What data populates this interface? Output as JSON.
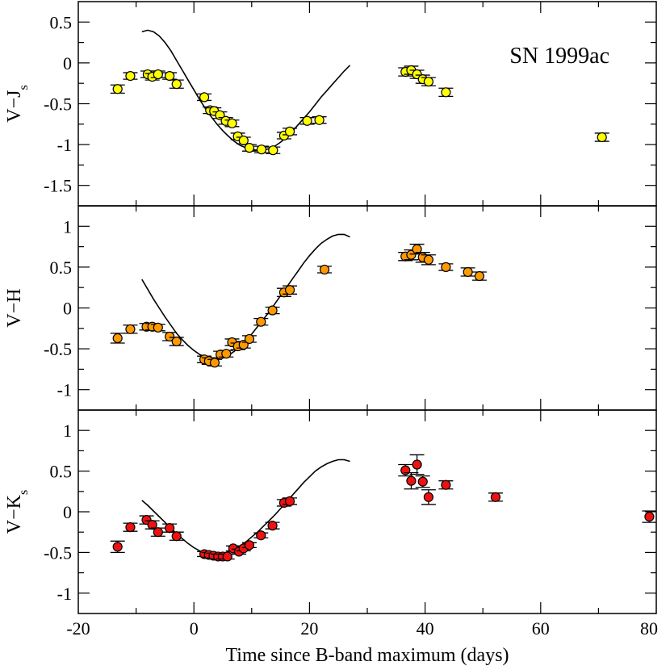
{
  "chart_data": {
    "type": "scatter",
    "title": "SN 1999ac",
    "xlabel": "Time since B-band maximum (days)",
    "xlim": [
      -20,
      80
    ],
    "xticks": [
      -20,
      0,
      20,
      40,
      60,
      80
    ],
    "panels": [
      {
        "id": "vj",
        "ylabel_main": "V−J",
        "ylabel_sub": "s",
        "ylim": [
          -1.75,
          0.75
        ],
        "yticks": [
          0.5,
          0,
          -0.5,
          -1,
          -1.5
        ],
        "ytick_labels": [
          "0.5",
          "0",
          "-0.5",
          "-1",
          "-1.5"
        ],
        "marker_color": "#ffff00",
        "points": [
          {
            "x": -13.2,
            "y": -0.32,
            "err": 0.05
          },
          {
            "x": -11.0,
            "y": -0.16,
            "err": 0.04
          },
          {
            "x": -8.0,
            "y": -0.14,
            "err": 0.04
          },
          {
            "x": -7.2,
            "y": -0.17,
            "err": 0.04
          },
          {
            "x": -6.2,
            "y": -0.14,
            "err": 0.04
          },
          {
            "x": -4.2,
            "y": -0.16,
            "err": 0.04
          },
          {
            "x": -3.0,
            "y": -0.26,
            "err": 0.05
          },
          {
            "x": 1.8,
            "y": -0.42,
            "err": 0.04
          },
          {
            "x": 2.8,
            "y": -0.58,
            "err": 0.04
          },
          {
            "x": 3.5,
            "y": -0.59,
            "err": 0.04
          },
          {
            "x": 4.5,
            "y": -0.64,
            "err": 0.04
          },
          {
            "x": 5.5,
            "y": -0.71,
            "err": 0.04
          },
          {
            "x": 6.6,
            "y": -0.74,
            "err": 0.04
          },
          {
            "x": 7.6,
            "y": -0.9,
            "err": 0.04
          },
          {
            "x": 8.6,
            "y": -0.95,
            "err": 0.04
          },
          {
            "x": 9.6,
            "y": -1.04,
            "err": 0.04
          },
          {
            "x": 11.7,
            "y": -1.06,
            "err": 0.04
          },
          {
            "x": 13.7,
            "y": -1.07,
            "err": 0.04
          },
          {
            "x": 15.6,
            "y": -0.89,
            "err": 0.04
          },
          {
            "x": 16.6,
            "y": -0.84,
            "err": 0.04
          },
          {
            "x": 19.6,
            "y": -0.71,
            "err": 0.04
          },
          {
            "x": 21.7,
            "y": -0.7,
            "err": 0.04
          },
          {
            "x": 36.6,
            "y": -0.11,
            "err": 0.05
          },
          {
            "x": 37.6,
            "y": -0.09,
            "err": 0.05
          },
          {
            "x": 38.6,
            "y": -0.14,
            "err": 0.05
          },
          {
            "x": 39.6,
            "y": -0.2,
            "err": 0.05
          },
          {
            "x": 40.6,
            "y": -0.23,
            "err": 0.05
          },
          {
            "x": 43.6,
            "y": -0.36,
            "err": 0.05
          },
          {
            "x": 70.6,
            "y": -0.91,
            "err": 0.05
          }
        ],
        "curve": {
          "x": [
            -9,
            -8,
            -7,
            -6,
            -5,
            -4,
            -3,
            -2,
            -1,
            0,
            1,
            2,
            3,
            4,
            5,
            6,
            7,
            8,
            9,
            10,
            11,
            12,
            13,
            14,
            15,
            16,
            17,
            18,
            19,
            20,
            21,
            22,
            23,
            24,
            25,
            26,
            27
          ],
          "y": [
            0.38,
            0.4,
            0.38,
            0.33,
            0.25,
            0.15,
            0.03,
            -0.09,
            -0.21,
            -0.33,
            -0.45,
            -0.56,
            -0.66,
            -0.75,
            -0.83,
            -0.9,
            -0.96,
            -1.01,
            -1.04,
            -1.06,
            -1.07,
            -1.07,
            -1.05,
            -1.02,
            -0.97,
            -0.91,
            -0.84,
            -0.76,
            -0.68,
            -0.6,
            -0.51,
            -0.42,
            -0.34,
            -0.26,
            -0.18,
            -0.1,
            -0.03
          ]
        }
      },
      {
        "id": "vh",
        "ylabel_main": "V−H",
        "ylabel_sub": "",
        "ylim": [
          -1.25,
          1.25
        ],
        "yticks": [
          1,
          0.5,
          0,
          -0.5,
          -1
        ],
        "ytick_labels": [
          "1",
          "0.5",
          "0",
          "-0.5",
          "-1"
        ],
        "marker_color": "#ff9900",
        "points": [
          {
            "x": -13.2,
            "y": -0.37,
            "err": 0.06
          },
          {
            "x": -11.0,
            "y": -0.26,
            "err": 0.05
          },
          {
            "x": -8.2,
            "y": -0.23,
            "err": 0.04
          },
          {
            "x": -7.2,
            "y": -0.23,
            "err": 0.04
          },
          {
            "x": -6.2,
            "y": -0.24,
            "err": 0.04
          },
          {
            "x": -4.2,
            "y": -0.35,
            "err": 0.05
          },
          {
            "x": -3.0,
            "y": -0.41,
            "err": 0.05
          },
          {
            "x": 1.8,
            "y": -0.63,
            "err": 0.04
          },
          {
            "x": 2.6,
            "y": -0.65,
            "err": 0.04
          },
          {
            "x": 3.6,
            "y": -0.67,
            "err": 0.04
          },
          {
            "x": 4.6,
            "y": -0.57,
            "err": 0.04
          },
          {
            "x": 5.6,
            "y": -0.56,
            "err": 0.04
          },
          {
            "x": 6.6,
            "y": -0.42,
            "err": 0.04
          },
          {
            "x": 7.6,
            "y": -0.47,
            "err": 0.04
          },
          {
            "x": 8.6,
            "y": -0.45,
            "err": 0.04
          },
          {
            "x": 9.6,
            "y": -0.38,
            "err": 0.04
          },
          {
            "x": 11.6,
            "y": -0.17,
            "err": 0.04
          },
          {
            "x": 13.6,
            "y": -0.03,
            "err": 0.04
          },
          {
            "x": 15.6,
            "y": 0.19,
            "err": 0.05
          },
          {
            "x": 16.6,
            "y": 0.22,
            "err": 0.05
          },
          {
            "x": 22.6,
            "y": 0.47,
            "err": 0.04
          },
          {
            "x": 36.6,
            "y": 0.63,
            "err": 0.05
          },
          {
            "x": 37.6,
            "y": 0.65,
            "err": 0.06
          },
          {
            "x": 38.6,
            "y": 0.72,
            "err": 0.06
          },
          {
            "x": 39.6,
            "y": 0.62,
            "err": 0.06
          },
          {
            "x": 40.6,
            "y": 0.59,
            "err": 0.06
          },
          {
            "x": 43.6,
            "y": 0.5,
            "err": 0.04
          },
          {
            "x": 47.4,
            "y": 0.44,
            "err": 0.05
          },
          {
            "x": 49.4,
            "y": 0.39,
            "err": 0.05
          }
        ],
        "curve": {
          "x": [
            -9,
            -8,
            -7,
            -6,
            -5,
            -4,
            -3,
            -2,
            -1,
            0,
            1,
            2,
            3,
            4,
            5,
            6,
            7,
            8,
            9,
            10,
            11,
            12,
            13,
            14,
            15,
            16,
            17,
            18,
            19,
            20,
            21,
            22,
            23,
            24,
            25,
            26,
            27
          ],
          "y": [
            0.35,
            0.23,
            0.11,
            0.0,
            -0.11,
            -0.21,
            -0.31,
            -0.39,
            -0.46,
            -0.52,
            -0.57,
            -0.6,
            -0.62,
            -0.62,
            -0.61,
            -0.58,
            -0.53,
            -0.47,
            -0.4,
            -0.32,
            -0.23,
            -0.14,
            -0.05,
            0.05,
            0.15,
            0.25,
            0.35,
            0.45,
            0.55,
            0.64,
            0.72,
            0.79,
            0.84,
            0.88,
            0.9,
            0.9,
            0.87
          ]
        }
      },
      {
        "id": "vk",
        "ylabel_main": "V−K",
        "ylabel_sub": "s",
        "ylim": [
          -1.25,
          1.25
        ],
        "yticks": [
          1,
          0.5,
          0,
          -0.5,
          -1
        ],
        "ytick_labels": [
          "1",
          "0.5",
          "0",
          "-0.5",
          "-1"
        ],
        "marker_color": "#ee1111",
        "points": [
          {
            "x": -13.2,
            "y": -0.43,
            "err": 0.07
          },
          {
            "x": -11.0,
            "y": -0.19,
            "err": 0.05
          },
          {
            "x": -8.2,
            "y": -0.1,
            "err": 0.05
          },
          {
            "x": -7.2,
            "y": -0.16,
            "err": 0.05
          },
          {
            "x": -6.2,
            "y": -0.25,
            "err": 0.05
          },
          {
            "x": -4.2,
            "y": -0.2,
            "err": 0.05
          },
          {
            "x": -3.0,
            "y": -0.3,
            "err": 0.05
          },
          {
            "x": 1.8,
            "y": -0.52,
            "err": 0.03
          },
          {
            "x": 2.6,
            "y": -0.53,
            "err": 0.03
          },
          {
            "x": 3.4,
            "y": -0.54,
            "err": 0.03
          },
          {
            "x": 4.2,
            "y": -0.55,
            "err": 0.03
          },
          {
            "x": 5.0,
            "y": -0.55,
            "err": 0.03
          },
          {
            "x": 5.8,
            "y": -0.55,
            "err": 0.03
          },
          {
            "x": 6.8,
            "y": -0.45,
            "err": 0.03
          },
          {
            "x": 7.8,
            "y": -0.49,
            "err": 0.03
          },
          {
            "x": 8.6,
            "y": -0.45,
            "err": 0.03
          },
          {
            "x": 9.6,
            "y": -0.41,
            "err": 0.03
          },
          {
            "x": 11.6,
            "y": -0.29,
            "err": 0.03
          },
          {
            "x": 13.6,
            "y": -0.17,
            "err": 0.04
          },
          {
            "x": 15.6,
            "y": 0.11,
            "err": 0.04
          },
          {
            "x": 16.6,
            "y": 0.13,
            "err": 0.04
          },
          {
            "x": 36.6,
            "y": 0.51,
            "err": 0.07
          },
          {
            "x": 37.6,
            "y": 0.38,
            "err": 0.1
          },
          {
            "x": 38.6,
            "y": 0.58,
            "err": 0.12
          },
          {
            "x": 39.6,
            "y": 0.37,
            "err": 0.07
          },
          {
            "x": 40.6,
            "y": 0.18,
            "err": 0.09
          },
          {
            "x": 43.6,
            "y": 0.33,
            "err": 0.05
          },
          {
            "x": 52.2,
            "y": 0.18,
            "err": 0.05
          },
          {
            "x": 78.8,
            "y": -0.06,
            "err": 0.07
          }
        ],
        "curve": {
          "x": [
            -9,
            -8,
            -7,
            -6,
            -5,
            -4,
            -3,
            -2,
            -1,
            0,
            1,
            2,
            3,
            4,
            5,
            6,
            7,
            8,
            9,
            10,
            11,
            12,
            13,
            14,
            15,
            16,
            17,
            18,
            19,
            20,
            21,
            22,
            23,
            24,
            25,
            26,
            27
          ],
          "y": [
            0.14,
            0.08,
            0.01,
            -0.06,
            -0.13,
            -0.2,
            -0.27,
            -0.33,
            -0.39,
            -0.44,
            -0.48,
            -0.51,
            -0.52,
            -0.52,
            -0.51,
            -0.49,
            -0.46,
            -0.42,
            -0.37,
            -0.31,
            -0.25,
            -0.18,
            -0.11,
            -0.04,
            0.04,
            0.12,
            0.2,
            0.28,
            0.36,
            0.43,
            0.5,
            0.55,
            0.59,
            0.62,
            0.64,
            0.64,
            0.62
          ]
        }
      }
    ]
  }
}
